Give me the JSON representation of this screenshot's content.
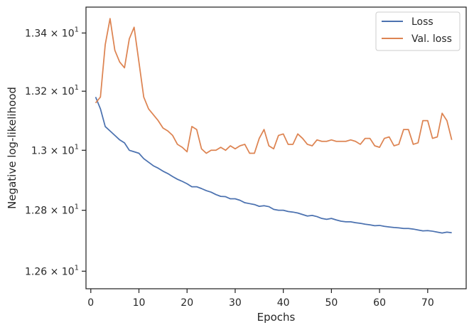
{
  "chart_data": {
    "type": "line",
    "xlabel": "Epochs",
    "ylabel": "Negative log-likelihood",
    "xlim": [
      -1,
      78
    ],
    "ylim": [
      12.543,
      13.49
    ],
    "y_scale": "log",
    "x_ticks": [
      0,
      10,
      20,
      30,
      40,
      50,
      60,
      70
    ],
    "y_ticks": [
      {
        "value": 12.6,
        "mantissa": "1.26",
        "base": "10",
        "exp": "1"
      },
      {
        "value": 12.8,
        "mantissa": "1.28",
        "base": "10",
        "exp": "1"
      },
      {
        "value": 13.0,
        "mantissa": "1.3",
        "base": "10",
        "exp": "1"
      },
      {
        "value": 13.2,
        "mantissa": "1.32",
        "base": "10",
        "exp": "1"
      },
      {
        "value": 13.4,
        "mantissa": "1.34",
        "base": "10",
        "exp": "1"
      }
    ],
    "grid": false,
    "legend_position": "top-right",
    "x": [
      1,
      2,
      3,
      4,
      5,
      6,
      7,
      8,
      9,
      10,
      11,
      12,
      13,
      14,
      15,
      16,
      17,
      18,
      19,
      20,
      21,
      22,
      23,
      24,
      25,
      26,
      27,
      28,
      29,
      30,
      31,
      32,
      33,
      34,
      35,
      36,
      37,
      38,
      39,
      40,
      41,
      42,
      43,
      44,
      45,
      46,
      47,
      48,
      49,
      50,
      51,
      52,
      53,
      54,
      55,
      56,
      57,
      58,
      59,
      60,
      61,
      62,
      63,
      64,
      65,
      66,
      67,
      68,
      69,
      70,
      71,
      72,
      73,
      74,
      75
    ],
    "series": [
      {
        "name": "Loss",
        "color": "#4c72b0",
        "values": [
          13.18,
          13.14,
          13.08,
          13.065,
          13.05,
          13.035,
          13.025,
          13.0,
          12.995,
          12.99,
          12.972,
          12.96,
          12.948,
          12.94,
          12.93,
          12.922,
          12.912,
          12.903,
          12.896,
          12.888,
          12.878,
          12.878,
          12.872,
          12.865,
          12.86,
          12.852,
          12.846,
          12.845,
          12.838,
          12.838,
          12.833,
          12.825,
          12.822,
          12.819,
          12.813,
          12.815,
          12.812,
          12.803,
          12.8,
          12.8,
          12.796,
          12.794,
          12.791,
          12.786,
          12.781,
          12.783,
          12.779,
          12.773,
          12.77,
          12.773,
          12.768,
          12.764,
          12.762,
          12.762,
          12.759,
          12.757,
          12.754,
          12.752,
          12.749,
          12.75,
          12.747,
          12.745,
          12.743,
          12.742,
          12.74,
          12.74,
          12.738,
          12.735,
          12.732,
          12.733,
          12.731,
          12.728,
          12.725,
          12.728,
          12.726
        ]
      },
      {
        "name": "Val. loss",
        "color": "#dd8452",
        "values": [
          13.16,
          13.18,
          13.36,
          13.45,
          13.34,
          13.3,
          13.28,
          13.38,
          13.42,
          13.3,
          13.18,
          13.14,
          13.12,
          13.1,
          13.075,
          13.065,
          13.05,
          13.02,
          13.01,
          12.995,
          13.08,
          13.07,
          13.005,
          12.99,
          13.0,
          13.0,
          13.01,
          13.0,
          13.015,
          13.005,
          13.015,
          13.02,
          12.99,
          12.99,
          13.04,
          13.07,
          13.015,
          13.005,
          13.05,
          13.055,
          13.02,
          13.02,
          13.055,
          13.04,
          13.02,
          13.015,
          13.035,
          13.03,
          13.03,
          13.035,
          13.03,
          13.03,
          13.03,
          13.035,
          13.03,
          13.02,
          13.04,
          13.04,
          13.015,
          13.01,
          13.04,
          13.045,
          13.015,
          13.02,
          13.07,
          13.07,
          13.02,
          13.025,
          13.1,
          13.1,
          13.04,
          13.045,
          13.125,
          13.1,
          13.035
        ]
      }
    ]
  }
}
